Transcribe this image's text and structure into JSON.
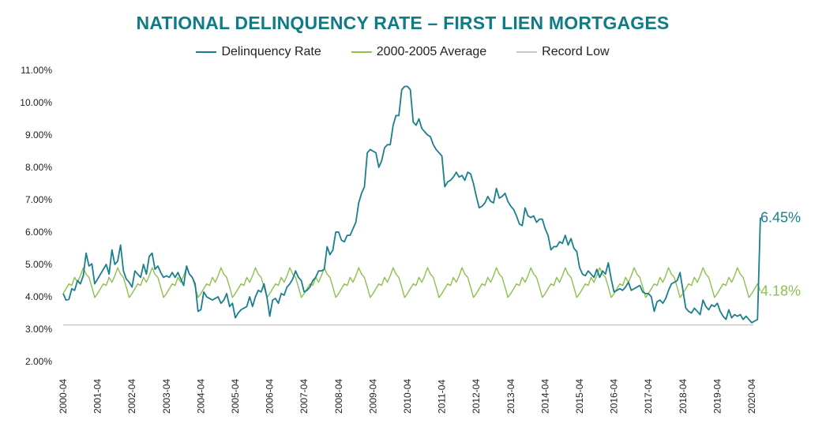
{
  "chart_data": {
    "type": "line",
    "title": "NATIONAL DELINQUENCY RATE – FIRST LIEN MORTGAGES",
    "xlabel": "",
    "ylabel": "",
    "ylim": [
      2.0,
      11.0
    ],
    "y_ticks": [
      "2.00%",
      "3.00%",
      "4.00%",
      "5.00%",
      "6.00%",
      "7.00%",
      "8.00%",
      "9.00%",
      "10.00%",
      "11.00%"
    ],
    "x_start": "2000-04",
    "x_end": "2020-04",
    "x_ticks": [
      "2000-04",
      "2001-04",
      "2002-04",
      "2003-04",
      "2004-04",
      "2005-04",
      "2006-04",
      "2007-04",
      "2008-04",
      "2009-04",
      "2010-04",
      "2011-04",
      "2012-04",
      "2013-04",
      "2014-04",
      "2015-04",
      "2016-04",
      "2017-04",
      "2018-04",
      "2019-04",
      "2020-04"
    ],
    "legend_position": "top",
    "grid": false,
    "series": [
      {
        "name": "Delinquency Rate",
        "color": "#1a7f8c",
        "monthly_start": "2000-04",
        "values": [
          4.1,
          3.9,
          3.92,
          4.25,
          4.2,
          4.5,
          4.4,
          4.65,
          5.35,
          4.95,
          5.02,
          4.4,
          4.55,
          4.7,
          4.85,
          5.0,
          4.7,
          5.45,
          5.0,
          5.1,
          5.6,
          4.8,
          4.55,
          4.45,
          4.3,
          4.8,
          4.7,
          4.6,
          5.0,
          4.7,
          5.25,
          5.35,
          4.85,
          4.95,
          4.75,
          4.6,
          4.65,
          4.6,
          4.75,
          4.6,
          4.75,
          4.55,
          4.35,
          4.95,
          4.7,
          4.6,
          4.4,
          3.55,
          3.6,
          4.15,
          4.0,
          3.95,
          3.9,
          3.95,
          4.0,
          3.8,
          3.9,
          4.1,
          3.7,
          3.8,
          3.35,
          3.5,
          3.6,
          3.65,
          3.7,
          4.0,
          3.7,
          4.0,
          4.2,
          4.15,
          4.4,
          4.0,
          3.4,
          3.9,
          3.95,
          3.8,
          4.1,
          4.05,
          4.3,
          4.4,
          4.55,
          4.8,
          4.6,
          4.5,
          4.15,
          4.2,
          4.3,
          4.5,
          4.6,
          4.8,
          4.8,
          4.85,
          5.55,
          5.3,
          5.45,
          6.0,
          6.0,
          5.75,
          5.7,
          5.9,
          5.9,
          6.1,
          6.3,
          6.9,
          7.2,
          7.4,
          8.45,
          8.55,
          8.5,
          8.45,
          8.0,
          8.2,
          8.6,
          8.7,
          8.7,
          9.3,
          9.6,
          9.6,
          10.4,
          10.5,
          10.5,
          10.4,
          9.4,
          9.3,
          9.5,
          9.2,
          9.1,
          9.0,
          8.95,
          8.7,
          8.55,
          8.45,
          8.35,
          7.4,
          7.55,
          7.6,
          7.7,
          7.85,
          7.7,
          7.75,
          7.6,
          7.85,
          7.8,
          7.5,
          7.1,
          6.75,
          6.8,
          6.9,
          7.1,
          6.95,
          6.9,
          7.35,
          7.05,
          7.1,
          7.2,
          6.95,
          6.8,
          6.7,
          6.5,
          6.25,
          6.2,
          6.75,
          6.5,
          6.45,
          6.5,
          6.3,
          6.4,
          6.4,
          6.1,
          5.9,
          5.45,
          5.55,
          5.55,
          5.7,
          5.65,
          5.9,
          5.6,
          5.8,
          5.5,
          5.4,
          4.9,
          4.7,
          4.65,
          4.8,
          4.7,
          4.6,
          4.85,
          4.6,
          4.8,
          4.7,
          5.05,
          4.55,
          4.15,
          4.2,
          4.25,
          4.2,
          4.3,
          4.45,
          4.2,
          4.25,
          4.3,
          4.35,
          4.15,
          4.1,
          4.1,
          4.0,
          3.55,
          3.85,
          3.9,
          3.8,
          3.95,
          4.2,
          4.4,
          4.45,
          4.5,
          4.75,
          4.2,
          3.65,
          3.55,
          3.5,
          3.65,
          3.55,
          3.45,
          3.9,
          3.7,
          3.6,
          3.75,
          3.7,
          3.8,
          3.55,
          3.4,
          3.3,
          3.6,
          3.35,
          3.45,
          3.4,
          3.45,
          3.3,
          3.4,
          3.3,
          3.2,
          3.25,
          3.3,
          6.45
        ]
      },
      {
        "name": "2000-2005 Average",
        "color": "#8dc04f",
        "monthly_start": "2000-04",
        "seasonal_pattern": [
          4.1,
          4.25,
          4.4,
          4.35,
          4.6,
          4.45,
          4.65,
          4.9,
          4.7,
          4.6,
          4.3,
          3.98
        ]
      },
      {
        "name": "Record Low",
        "color": "#c8c8c8",
        "value": 3.13,
        "x_start": "2000-04",
        "x_end": "2020-04"
      }
    ],
    "end_labels": [
      {
        "series": "Delinquency Rate",
        "text": "6.45%",
        "color": "#1a7f8c",
        "value": 6.45
      },
      {
        "series": "2000-2005 Average",
        "text": "4.18%",
        "color": "#8dc04f",
        "value": 4.18
      }
    ]
  }
}
